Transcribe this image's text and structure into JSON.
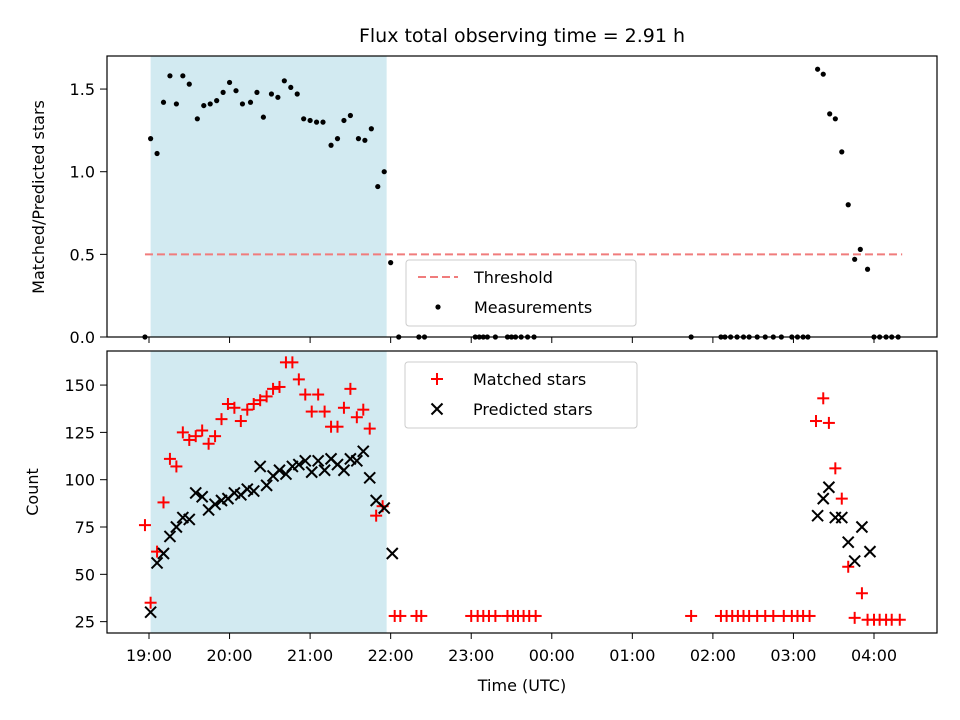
{
  "chart_data": {
    "type": "scatter",
    "title": "Flux total observing time = 2.91 h",
    "xlabel": "Time (UTC)",
    "x_ticks": [
      {
        "t": 19.0,
        "label": "19:00"
      },
      {
        "t": 20.0,
        "label": "20:00"
      },
      {
        "t": 21.0,
        "label": "21:00"
      },
      {
        "t": 22.0,
        "label": "22:00"
      },
      {
        "t": 23.0,
        "label": "23:00"
      },
      {
        "t": 24.0,
        "label": "00:00"
      },
      {
        "t": 25.0,
        "label": "01:00"
      },
      {
        "t": 26.0,
        "label": "02:00"
      },
      {
        "t": 27.0,
        "label": "03:00"
      },
      {
        "t": 28.0,
        "label": "04:00"
      }
    ],
    "shaded_interval": [
      19.02,
      21.95
    ],
    "top_panel": {
      "ylabel": "Matched/Predicted stars",
      "ylim": [
        0.0,
        1.7
      ],
      "yticks": [
        {
          "v": 0.0,
          "label": "0.0"
        },
        {
          "v": 0.5,
          "label": "0.5"
        },
        {
          "v": 1.0,
          "label": "1.0"
        },
        {
          "v": 1.5,
          "label": "1.5"
        }
      ],
      "threshold": {
        "name": "Threshold",
        "value": 0.5,
        "x_start": 18.95,
        "x_end": 28.35,
        "color": "#f07c7c"
      },
      "measurements_name": "Measurements",
      "measurements": [
        [
          18.95,
          0.0
        ],
        [
          19.02,
          1.2
        ],
        [
          19.1,
          1.11
        ],
        [
          19.18,
          1.42
        ],
        [
          19.26,
          1.58
        ],
        [
          19.34,
          1.41
        ],
        [
          19.42,
          1.58
        ],
        [
          19.5,
          1.53
        ],
        [
          19.6,
          1.32
        ],
        [
          19.68,
          1.4
        ],
        [
          19.76,
          1.41
        ],
        [
          19.84,
          1.43
        ],
        [
          19.92,
          1.48
        ],
        [
          20.0,
          1.54
        ],
        [
          20.08,
          1.49
        ],
        [
          20.16,
          1.41
        ],
        [
          20.26,
          1.42
        ],
        [
          20.34,
          1.48
        ],
        [
          20.42,
          1.33
        ],
        [
          20.52,
          1.47
        ],
        [
          20.6,
          1.45
        ],
        [
          20.68,
          1.55
        ],
        [
          20.76,
          1.51
        ],
        [
          20.84,
          1.47
        ],
        [
          20.92,
          1.32
        ],
        [
          21.0,
          1.31
        ],
        [
          21.08,
          1.3
        ],
        [
          21.16,
          1.3
        ],
        [
          21.26,
          1.16
        ],
        [
          21.34,
          1.2
        ],
        [
          21.42,
          1.31
        ],
        [
          21.5,
          1.34
        ],
        [
          21.6,
          1.2
        ],
        [
          21.68,
          1.19
        ],
        [
          21.76,
          1.26
        ],
        [
          21.84,
          0.91
        ],
        [
          21.92,
          1.0
        ],
        [
          22.0,
          0.45
        ],
        [
          22.1,
          0.0
        ],
        [
          22.35,
          0.0
        ],
        [
          22.42,
          0.0
        ],
        [
          23.05,
          0.0
        ],
        [
          23.1,
          0.0
        ],
        [
          23.15,
          0.0
        ],
        [
          23.2,
          0.0
        ],
        [
          23.3,
          0.0
        ],
        [
          23.45,
          0.0
        ],
        [
          23.5,
          0.0
        ],
        [
          23.55,
          0.0
        ],
        [
          23.62,
          0.0
        ],
        [
          23.7,
          0.0
        ],
        [
          23.78,
          0.0
        ],
        [
          25.73,
          0.0
        ],
        [
          26.1,
          0.0
        ],
        [
          26.15,
          0.0
        ],
        [
          26.22,
          0.0
        ],
        [
          26.3,
          0.0
        ],
        [
          26.38,
          0.0
        ],
        [
          26.45,
          0.0
        ],
        [
          26.55,
          0.0
        ],
        [
          26.65,
          0.0
        ],
        [
          26.75,
          0.0
        ],
        [
          26.85,
          0.0
        ],
        [
          26.98,
          0.0
        ],
        [
          27.05,
          0.0
        ],
        [
          27.12,
          0.0
        ],
        [
          27.18,
          0.0
        ],
        [
          27.3,
          1.62
        ],
        [
          27.37,
          1.59
        ],
        [
          27.45,
          1.35
        ],
        [
          27.52,
          1.32
        ],
        [
          27.6,
          1.12
        ],
        [
          27.68,
          0.8
        ],
        [
          27.76,
          0.47
        ],
        [
          27.83,
          0.53
        ],
        [
          27.92,
          0.41
        ],
        [
          28.0,
          0.0
        ],
        [
          28.07,
          0.0
        ],
        [
          28.15,
          0.0
        ],
        [
          28.22,
          0.0
        ],
        [
          28.3,
          0.0
        ]
      ]
    },
    "bottom_panel": {
      "ylabel": "Count",
      "ylim": [
        19,
        168
      ],
      "yticks": [
        {
          "v": 25,
          "label": "25"
        },
        {
          "v": 50,
          "label": "50"
        },
        {
          "v": 75,
          "label": "75"
        },
        {
          "v": 100,
          "label": "100"
        },
        {
          "v": 125,
          "label": "125"
        },
        {
          "v": 150,
          "label": "150"
        }
      ],
      "series": [
        {
          "name": "Matched stars",
          "marker": "plus",
          "color": "#ff0000",
          "points": [
            [
              18.95,
              76
            ],
            [
              19.02,
              35
            ],
            [
              19.1,
              62
            ],
            [
              19.18,
              88
            ],
            [
              19.26,
              111
            ],
            [
              19.34,
              107
            ],
            [
              19.42,
              125
            ],
            [
              19.5,
              121
            ],
            [
              19.58,
              123
            ],
            [
              19.66,
              126
            ],
            [
              19.74,
              119
            ],
            [
              19.82,
              123
            ],
            [
              19.9,
              132
            ],
            [
              19.98,
              140
            ],
            [
              20.06,
              138
            ],
            [
              20.14,
              131
            ],
            [
              20.22,
              137
            ],
            [
              20.3,
              140
            ],
            [
              20.38,
              142
            ],
            [
              20.46,
              144
            ],
            [
              20.54,
              148
            ],
            [
              20.62,
              149
            ],
            [
              20.7,
              162
            ],
            [
              20.78,
              162
            ],
            [
              20.86,
              153
            ],
            [
              20.94,
              145
            ],
            [
              21.02,
              136
            ],
            [
              21.1,
              145
            ],
            [
              21.18,
              136
            ],
            [
              21.26,
              128
            ],
            [
              21.34,
              128
            ],
            [
              21.42,
              138
            ],
            [
              21.5,
              148
            ],
            [
              21.58,
              133
            ],
            [
              21.66,
              137
            ],
            [
              21.74,
              127
            ],
            [
              21.82,
              81
            ],
            [
              21.9,
              86
            ],
            [
              22.05,
              28
            ],
            [
              22.12,
              28
            ],
            [
              22.32,
              28
            ],
            [
              22.38,
              28
            ],
            [
              23.0,
              28
            ],
            [
              23.08,
              28
            ],
            [
              23.15,
              28
            ],
            [
              23.22,
              28
            ],
            [
              23.3,
              28
            ],
            [
              23.45,
              28
            ],
            [
              23.52,
              28
            ],
            [
              23.58,
              28
            ],
            [
              23.65,
              28
            ],
            [
              23.72,
              28
            ],
            [
              23.8,
              28
            ],
            [
              25.73,
              28
            ],
            [
              26.1,
              28
            ],
            [
              26.17,
              28
            ],
            [
              26.24,
              28
            ],
            [
              26.31,
              28
            ],
            [
              26.38,
              28
            ],
            [
              26.45,
              28
            ],
            [
              26.55,
              28
            ],
            [
              26.65,
              28
            ],
            [
              26.75,
              28
            ],
            [
              26.88,
              28
            ],
            [
              26.98,
              28
            ],
            [
              27.05,
              28
            ],
            [
              27.12,
              28
            ],
            [
              27.2,
              28
            ],
            [
              27.28,
              131
            ],
            [
              27.37,
              143
            ],
            [
              27.44,
              130
            ],
            [
              27.52,
              106
            ],
            [
              27.6,
              90
            ],
            [
              27.68,
              54
            ],
            [
              27.76,
              27
            ],
            [
              27.85,
              40
            ],
            [
              27.92,
              26
            ],
            [
              28.0,
              26
            ],
            [
              28.07,
              26
            ],
            [
              28.15,
              26
            ],
            [
              28.22,
              26
            ],
            [
              28.32,
              26
            ]
          ]
        },
        {
          "name": "Predicted stars",
          "marker": "x",
          "color": "#000000",
          "points": [
            [
              19.02,
              30
            ],
            [
              19.1,
              56
            ],
            [
              19.18,
              61
            ],
            [
              19.26,
              70
            ],
            [
              19.34,
              75
            ],
            [
              19.42,
              80
            ],
            [
              19.5,
              79
            ],
            [
              19.58,
              93
            ],
            [
              19.66,
              91
            ],
            [
              19.74,
              84
            ],
            [
              19.82,
              87
            ],
            [
              19.9,
              89
            ],
            [
              19.98,
              90
            ],
            [
              20.06,
              93
            ],
            [
              20.14,
              92
            ],
            [
              20.22,
              95
            ],
            [
              20.3,
              94
            ],
            [
              20.38,
              107
            ],
            [
              20.46,
              97
            ],
            [
              20.54,
              102
            ],
            [
              20.62,
              105
            ],
            [
              20.7,
              103
            ],
            [
              20.78,
              107
            ],
            [
              20.86,
              108
            ],
            [
              20.94,
              110
            ],
            [
              21.02,
              104
            ],
            [
              21.1,
              110
            ],
            [
              21.18,
              105
            ],
            [
              21.26,
              111
            ],
            [
              21.34,
              108
            ],
            [
              21.42,
              105
            ],
            [
              21.5,
              111
            ],
            [
              21.58,
              110
            ],
            [
              21.66,
              115
            ],
            [
              21.74,
              101
            ],
            [
              21.82,
              89
            ],
            [
              21.92,
              85
            ],
            [
              22.02,
              61
            ],
            [
              27.3,
              81
            ],
            [
              27.37,
              90
            ],
            [
              27.44,
              96
            ],
            [
              27.52,
              80
            ],
            [
              27.6,
              80
            ],
            [
              27.68,
              67
            ],
            [
              27.76,
              57
            ],
            [
              27.85,
              75
            ],
            [
              27.95,
              62
            ]
          ]
        }
      ]
    }
  }
}
